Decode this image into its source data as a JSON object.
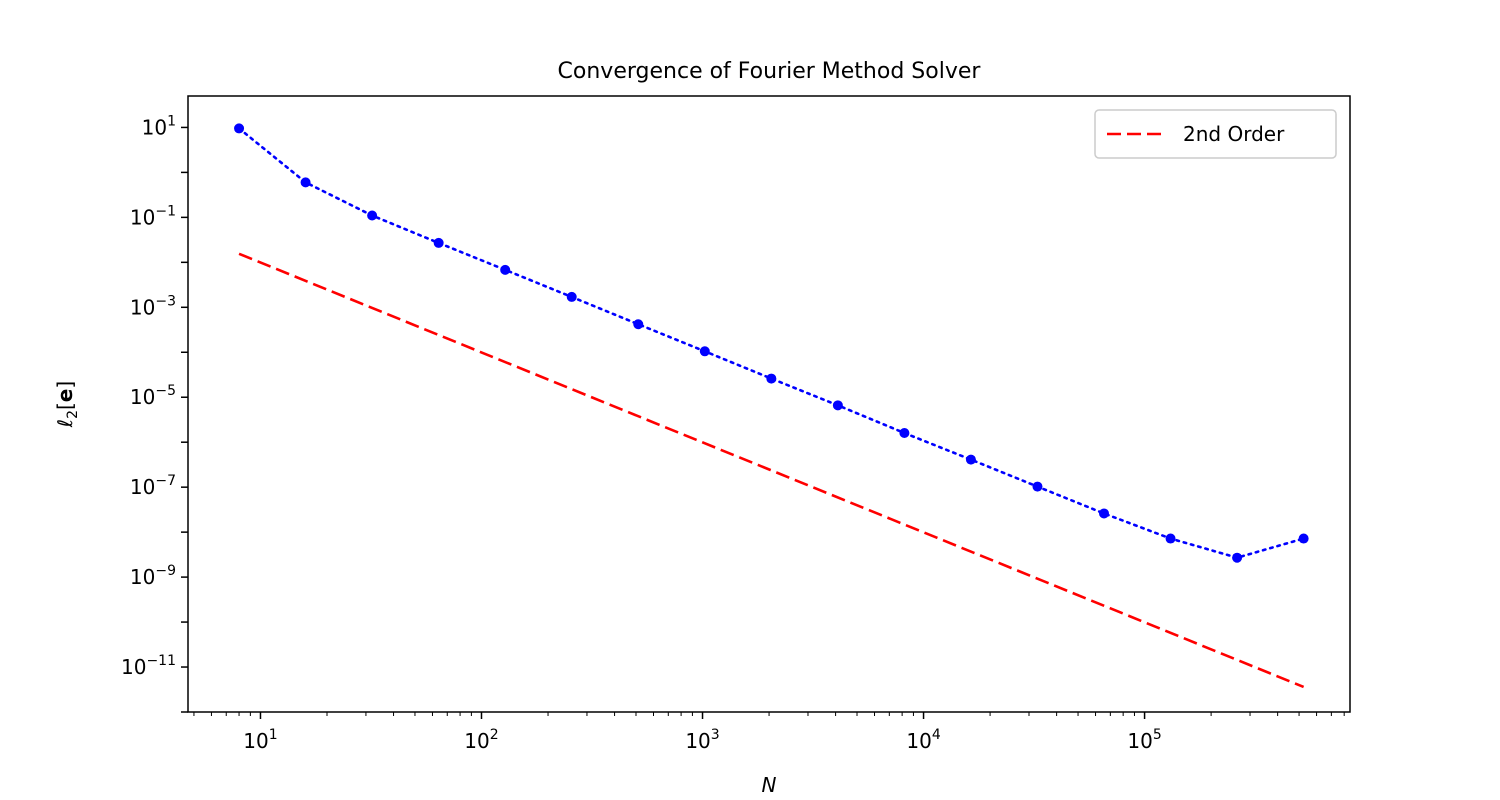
{
  "chart_data": {
    "type": "line",
    "title": "Convergence of Fourier Method Solver",
    "xlabel": "N",
    "ylabel": "ℓ2[e]",
    "xscale": "log",
    "yscale": "log",
    "xlim": [
      4.7,
      850000
    ],
    "ylim": [
      1e-12,
      50
    ],
    "xticks": [
      {
        "value": 10,
        "base": "10",
        "exp": "1"
      },
      {
        "value": 100,
        "base": "10",
        "exp": "2"
      },
      {
        "value": 1000,
        "base": "10",
        "exp": "3"
      },
      {
        "value": 10000,
        "base": "10",
        "exp": "4"
      },
      {
        "value": 100000,
        "base": "10",
        "exp": "5"
      }
    ],
    "yticks": [
      {
        "value": 10,
        "base": "10",
        "exp": "1"
      },
      {
        "value": 0.1,
        "base": "10",
        "exp": "−1"
      },
      {
        "value": 0.001,
        "base": "10",
        "exp": "−3"
      },
      {
        "value": 1e-05,
        "base": "10",
        "exp": "−5"
      },
      {
        "value": 1e-07,
        "base": "10",
        "exp": "−7"
      },
      {
        "value": 1e-09,
        "base": "10",
        "exp": "−9"
      },
      {
        "value": 1e-11,
        "base": "10",
        "exp": "−11"
      }
    ],
    "grid": false,
    "legend_position": "top-right",
    "series": [
      {
        "label": "",
        "color": "#0000ff",
        "style": "dotted",
        "marker": "circle",
        "x": [
          8,
          16,
          32,
          64,
          128,
          256,
          512,
          1024,
          2048,
          4096,
          8192,
          16384,
          32768,
          65536,
          131072,
          262144,
          524288
        ],
        "y": [
          9.5,
          0.6,
          0.11,
          0.027,
          0.0068,
          0.0017,
          0.00042,
          0.000105,
          2.6e-05,
          6.6e-06,
          1.6e-06,
          4.1e-07,
          1.03e-07,
          2.6e-08,
          7.2e-09,
          2.7e-09,
          7.2e-09
        ]
      },
      {
        "name": "2nd Order",
        "color": "#ff0000",
        "style": "dashed",
        "marker": "none",
        "x": [
          8,
          524288
        ],
        "y": [
          0.0155,
          3.6e-12
        ]
      }
    ]
  }
}
